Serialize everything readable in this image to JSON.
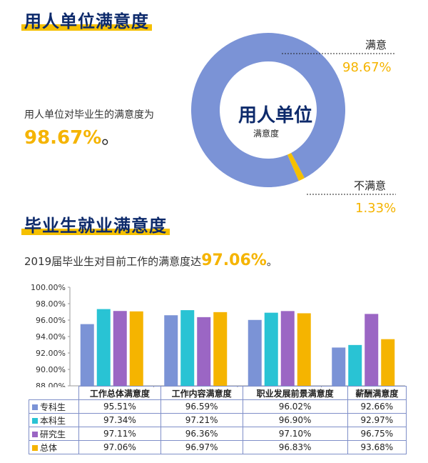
{
  "section1": {
    "title": "用人单位满意度",
    "statement": "用人单位对毕业生的满意度为",
    "value": "98.67%",
    "period": "。",
    "center_main": "用人单位",
    "center_sub": "满意度",
    "satisfied_label": "满意",
    "satisfied_value": "98.67%",
    "unsatisfied_label": "不满意",
    "unsatisfied_value": "1.33%"
  },
  "section2": {
    "title": "毕业生就业满意度",
    "statement": "2019届毕业生对目前工作的满意度达",
    "value": "97.06%",
    "period": "。"
  },
  "colors": {
    "专科生": "#7b93d6",
    "本科生": "#29c3d4",
    "研究生": "#9b66c4",
    "总体": "#f5b400",
    "donut_main": "#7b93d6",
    "donut_minor": "#f5c000",
    "accent": "#f5b400",
    "title": "#0d2a6b"
  },
  "chart_data": [
    {
      "type": "pie",
      "labels": [
        "满意",
        "不满意"
      ],
      "values": [
        98.67,
        1.33
      ]
    },
    {
      "type": "bar",
      "categories": [
        "工作总体满意度",
        "工作内容满意度",
        "职业发展前景满意度",
        "薪酬满意度"
      ],
      "series": [
        {
          "name": "专科生",
          "values": [
            95.51,
            96.59,
            96.02,
            92.66
          ],
          "labels": [
            "95.51%",
            "96.59%",
            "96.02%",
            "92.66%"
          ]
        },
        {
          "name": "本科生",
          "values": [
            97.34,
            97.21,
            96.9,
            92.97
          ],
          "labels": [
            "97.34%",
            "97.21%",
            "96.90%",
            "92.97%"
          ]
        },
        {
          "name": "研究生",
          "values": [
            97.11,
            96.36,
            97.1,
            96.75
          ],
          "labels": [
            "97.11%",
            "96.36%",
            "97.10%",
            "96.75%"
          ]
        },
        {
          "name": "总体",
          "values": [
            97.06,
            96.97,
            96.83,
            93.68
          ],
          "labels": [
            "97.06%",
            "96.97%",
            "96.83%",
            "93.68%"
          ]
        }
      ],
      "ylim": [
        88,
        100
      ],
      "yticks": [
        "88.00%",
        "90.00%",
        "92.00%",
        "94.00%",
        "96.00%",
        "98.00%",
        "100.00%"
      ],
      "legend": "table-bottom"
    }
  ]
}
